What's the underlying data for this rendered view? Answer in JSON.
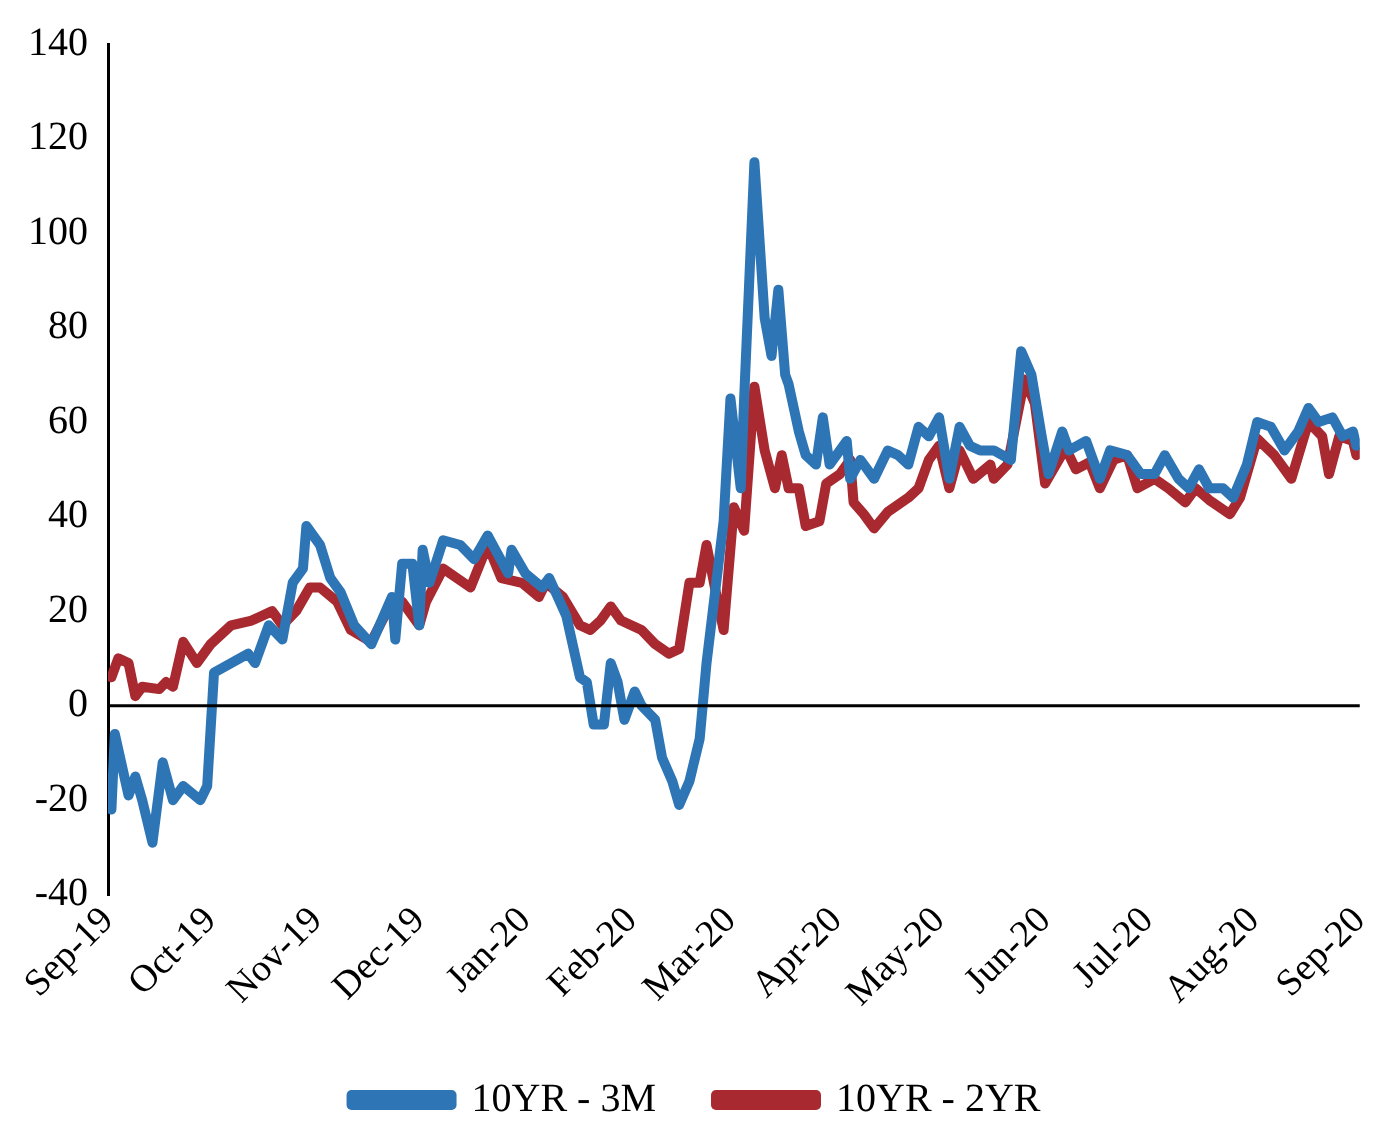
{
  "chart_data": {
    "type": "line",
    "ylim": [
      -40,
      140
    ],
    "yticks": [
      -40,
      -20,
      0,
      20,
      40,
      60,
      80,
      100,
      120,
      140
    ],
    "xlim": [
      "2019-09-01",
      "2020-09-01"
    ],
    "xticks": [
      {
        "value": "2019-09-01",
        "label": "Sep-19"
      },
      {
        "value": "2019-10-01",
        "label": "Oct-19"
      },
      {
        "value": "2019-11-01",
        "label": "Nov-19"
      },
      {
        "value": "2019-12-01",
        "label": "Dec-19"
      },
      {
        "value": "2020-01-01",
        "label": "Jan-20"
      },
      {
        "value": "2020-02-01",
        "label": "Feb-20"
      },
      {
        "value": "2020-03-01",
        "label": "Mar-20"
      },
      {
        "value": "2020-04-01",
        "label": "Apr-20"
      },
      {
        "value": "2020-05-01",
        "label": "May-20"
      },
      {
        "value": "2020-06-01",
        "label": "Jun-20"
      },
      {
        "value": "2020-07-01",
        "label": "Jul-20"
      },
      {
        "value": "2020-08-01",
        "label": "Aug-20"
      },
      {
        "value": "2020-09-01",
        "label": "Sep-20"
      }
    ],
    "grid": false,
    "legend": "bottom",
    "marker": "none",
    "line_style": "solid",
    "ref_lines": [
      {
        "axis": "y",
        "value": 0,
        "color": "#000000"
      }
    ],
    "series": [
      {
        "name": "10YR - 3M",
        "color": "#2e75b6",
        "x": [
          "2019-09-02",
          "2019-09-03",
          "2019-09-07",
          "2019-09-09",
          "2019-09-11",
          "2019-09-14",
          "2019-09-17",
          "2019-09-20",
          "2019-09-23",
          "2019-09-28",
          "2019-09-30",
          "2019-10-02",
          "2019-10-07",
          "2019-10-12",
          "2019-10-14",
          "2019-10-18",
          "2019-10-22",
          "2019-10-25",
          "2019-10-28",
          "2019-10-29",
          "2019-11-02",
          "2019-11-05",
          "2019-11-08",
          "2019-11-12",
          "2019-11-17",
          "2019-11-23",
          "2019-11-24",
          "2019-11-26",
          "2019-11-29",
          "2019-12-01",
          "2019-12-02",
          "2019-12-04",
          "2019-12-08",
          "2019-12-13",
          "2019-12-17",
          "2019-12-21",
          "2019-12-24",
          "2019-12-27",
          "2019-12-28",
          "2020-01-01",
          "2020-01-06",
          "2020-01-08",
          "2020-01-13",
          "2020-01-17",
          "2020-01-19",
          "2020-01-21",
          "2020-01-24",
          "2020-01-26",
          "2020-01-28",
          "2020-01-30",
          "2020-02-02",
          "2020-02-04",
          "2020-02-08",
          "2020-02-10",
          "2020-02-13",
          "2020-02-15",
          "2020-02-18",
          "2020-02-21",
          "2020-02-23",
          "2020-02-26",
          "2020-02-28",
          "2020-03-01",
          "2020-03-04",
          "2020-03-05",
          "2020-03-08",
          "2020-03-11",
          "2020-03-13",
          "2020-03-15",
          "2020-03-17",
          "2020-03-18",
          "2020-03-21",
          "2020-03-23",
          "2020-03-26",
          "2020-03-28",
          "2020-03-30",
          "2020-04-04",
          "2020-04-05",
          "2020-04-08",
          "2020-04-12",
          "2020-04-16",
          "2020-04-19",
          "2020-04-22",
          "2020-04-25",
          "2020-04-28",
          "2020-05-01",
          "2020-05-04",
          "2020-05-07",
          "2020-05-10",
          "2020-05-13",
          "2020-05-17",
          "2020-05-22",
          "2020-05-25",
          "2020-05-28",
          "2020-05-31",
          "2020-06-02",
          "2020-06-06",
          "2020-06-08",
          "2020-06-13",
          "2020-06-17",
          "2020-06-20",
          "2020-06-25",
          "2020-06-29",
          "2020-07-03",
          "2020-07-06",
          "2020-07-10",
          "2020-07-13",
          "2020-07-16",
          "2020-07-19",
          "2020-07-23",
          "2020-07-26",
          "2020-07-30",
          "2020-08-02",
          "2020-08-06",
          "2020-08-10",
          "2020-08-14",
          "2020-08-17",
          "2020-08-20",
          "2020-08-24",
          "2020-08-27",
          "2020-08-30",
          "2020-08-31"
        ],
        "values": [
          -22,
          -6,
          -19,
          -15,
          -20,
          -29,
          -12,
          -20,
          -17,
          -20,
          -17,
          7,
          9,
          11,
          9,
          17,
          14,
          26,
          29,
          38,
          34,
          27,
          24,
          17,
          13,
          23,
          14,
          30,
          30,
          17,
          33,
          26,
          35,
          34,
          31,
          36,
          32,
          28,
          33,
          28,
          25,
          27,
          19,
          6,
          5,
          -4,
          -4,
          9,
          5,
          -3,
          3,
          0,
          -3,
          -11,
          -16,
          -21,
          -16,
          -7,
          9,
          27,
          39,
          65,
          46,
          65,
          115,
          82,
          74,
          88,
          70,
          68,
          58,
          53,
          51,
          61,
          51,
          56,
          48,
          52,
          48,
          54,
          53,
          51,
          59,
          57,
          61,
          48,
          59,
          55,
          54,
          54,
          52,
          75,
          70,
          57,
          49,
          58,
          54,
          56,
          48,
          54,
          53,
          49,
          49,
          53,
          48,
          46,
          50,
          46,
          46,
          44,
          51,
          60,
          59,
          54,
          58,
          63,
          60,
          61,
          57,
          58,
          55
        ]
      },
      {
        "name": "10YR - 2YR",
        "color": "#a82a30",
        "x": [
          "2019-09-02",
          "2019-09-04",
          "2019-09-07",
          "2019-09-09",
          "2019-09-11",
          "2019-09-16",
          "2019-09-18",
          "2019-09-20",
          "2019-09-23",
          "2019-09-27",
          "2019-10-01",
          "2019-10-07",
          "2019-10-13",
          "2019-10-19",
          "2019-10-22",
          "2019-10-26",
          "2019-10-30",
          "2019-11-02",
          "2019-11-07",
          "2019-11-11",
          "2019-11-17",
          "2019-11-23",
          "2019-11-26",
          "2019-12-01",
          "2019-12-03",
          "2019-12-08",
          "2019-12-16",
          "2019-12-21",
          "2019-12-25",
          "2019-12-31",
          "2020-01-05",
          "2020-01-07",
          "2020-01-12",
          "2020-01-17",
          "2020-01-20",
          "2020-01-23",
          "2020-01-26",
          "2020-01-29",
          "2020-02-04",
          "2020-02-08",
          "2020-02-12",
          "2020-02-15",
          "2020-02-18",
          "2020-02-21",
          "2020-02-23",
          "2020-02-26",
          "2020-02-28",
          "2020-03-02",
          "2020-03-05",
          "2020-03-08",
          "2020-03-11",
          "2020-03-14",
          "2020-03-16",
          "2020-03-18",
          "2020-03-21",
          "2020-03-23",
          "2020-03-27",
          "2020-03-29",
          "2020-04-02",
          "2020-04-05",
          "2020-04-06",
          "2020-04-09",
          "2020-04-12",
          "2020-04-16",
          "2020-04-22",
          "2020-04-25",
          "2020-04-28",
          "2020-05-01",
          "2020-05-04",
          "2020-05-07",
          "2020-05-11",
          "2020-05-16",
          "2020-05-17",
          "2020-05-21",
          "2020-05-26",
          "2020-05-29",
          "2020-06-01",
          "2020-06-07",
          "2020-06-10",
          "2020-06-14",
          "2020-06-17",
          "2020-06-21",
          "2020-06-25",
          "2020-06-28",
          "2020-07-03",
          "2020-07-07",
          "2020-07-12",
          "2020-07-15",
          "2020-07-19",
          "2020-07-25",
          "2020-07-28",
          "2020-08-02",
          "2020-08-07",
          "2020-08-12",
          "2020-08-17",
          "2020-08-21",
          "2020-08-23",
          "2020-08-26",
          "2020-08-30",
          "2020-08-31"
        ],
        "values": [
          6,
          10,
          9,
          2,
          4,
          3.5,
          5,
          4,
          13.5,
          9,
          13,
          17,
          18,
          20,
          17,
          20,
          25,
          25,
          22,
          16,
          13.5,
          22,
          22,
          17,
          22,
          29,
          25,
          34,
          27,
          26,
          23,
          26,
          23,
          17,
          16,
          18,
          21,
          18,
          16,
          13,
          11,
          12,
          26,
          26,
          34,
          23,
          16,
          42,
          37,
          67.5,
          54,
          46,
          53,
          46,
          46,
          38,
          39,
          47,
          49,
          52,
          43,
          40.5,
          37.5,
          41,
          44,
          46,
          52,
          55,
          46,
          54,
          48,
          51,
          48,
          51,
          69,
          64,
          47,
          54.5,
          50,
          51.5,
          46,
          52,
          53,
          46,
          48,
          46,
          43,
          46,
          43.5,
          40.5,
          44,
          56.5,
          53,
          48,
          60,
          57,
          49,
          57,
          56,
          53
        ]
      }
    ]
  }
}
